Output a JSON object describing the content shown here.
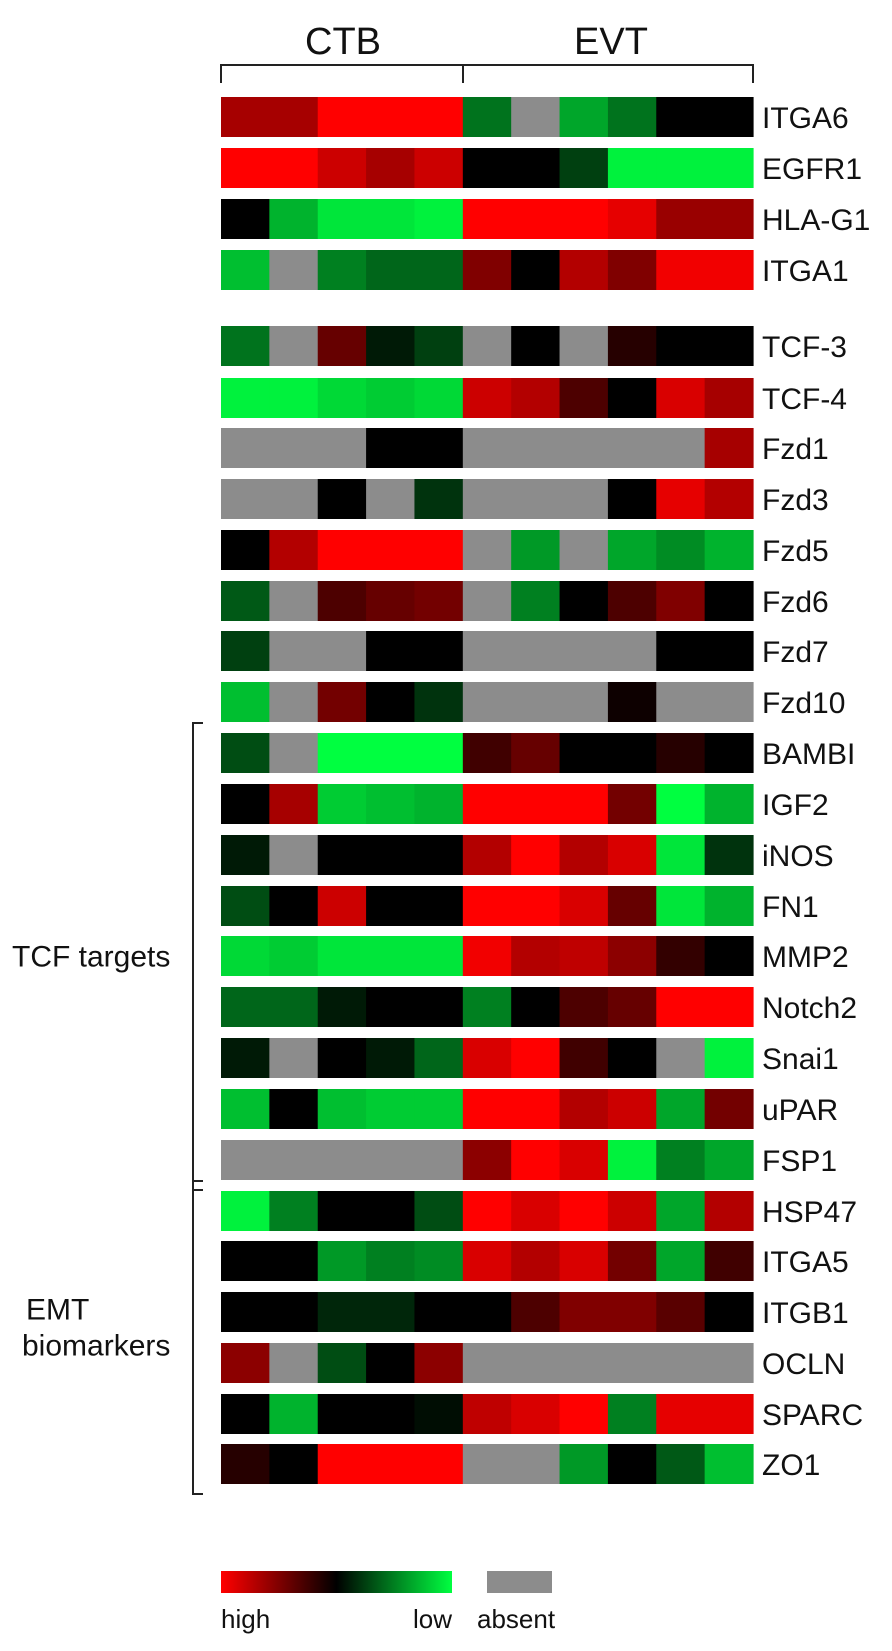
{
  "chart_data": {
    "type": "heatmap",
    "groups": [
      {
        "label": "CTB",
        "columns": 5
      },
      {
        "label": "EVT",
        "columns": 6
      }
    ],
    "color_scale": {
      "high_label": "high",
      "low_label": "low",
      "absent_label": "absent",
      "high_color": "#ff0000",
      "mid_color": "#000000",
      "low_color": "#00ff40",
      "absent_color": "#8c8c8c"
    },
    "row_groups": [
      {
        "label_lines": [
          "TCF targets"
        ],
        "from": "BAMBI",
        "to": "FSP1"
      },
      {
        "label_lines": [
          "EMT",
          "biomarkers"
        ],
        "from": "HSP47",
        "to": "ZO1"
      }
    ],
    "rows": [
      {
        "gene": "ITGA6",
        "values": [
          0.65,
          0.65,
          1,
          1,
          1,
          -0.45,
          null,
          -0.65,
          -0.45,
          0,
          0
        ]
      },
      {
        "gene": "EGFR1",
        "values": [
          1,
          1,
          0.8,
          0.65,
          0.8,
          0,
          0,
          -0.25,
          -0.95,
          -0.95,
          -0.95
        ]
      },
      {
        "gene": "HLA-G1",
        "values": [
          0,
          -0.7,
          -0.9,
          -0.9,
          -0.95,
          1,
          1,
          1,
          0.9,
          0.6,
          0.6
        ]
      },
      {
        "gene": "ITGA1",
        "values": [
          -0.75,
          null,
          -0.5,
          -0.4,
          -0.4,
          0.5,
          0,
          0.7,
          0.5,
          0.95,
          0.95
        ]
      },
      {
        "gene": "TCF-3",
        "values": [
          -0.45,
          null,
          0.4,
          -0.1,
          -0.25,
          null,
          0,
          null,
          0.15,
          0,
          0
        ]
      },
      {
        "gene": "TCF-4",
        "values": [
          -0.95,
          -0.95,
          -0.85,
          -0.8,
          -0.85,
          0.8,
          0.7,
          0.3,
          0,
          0.85,
          0.65
        ]
      },
      {
        "gene": "Fzd1",
        "values": [
          null,
          null,
          null,
          0,
          0,
          null,
          null,
          null,
          null,
          null,
          0.65
        ]
      },
      {
        "gene": "Fzd3",
        "values": [
          null,
          null,
          0,
          null,
          -0.2,
          null,
          null,
          null,
          0,
          0.9,
          0.7
        ]
      },
      {
        "gene": "Fzd5",
        "values": [
          0,
          0.7,
          1,
          1,
          1,
          null,
          -0.6,
          null,
          -0.65,
          -0.55,
          -0.7
        ]
      },
      {
        "gene": "Fzd6",
        "values": [
          -0.35,
          null,
          0.3,
          0.4,
          0.45,
          null,
          -0.5,
          0,
          0.3,
          0.5,
          0
        ]
      },
      {
        "gene": "Fzd7",
        "values": [
          -0.25,
          null,
          null,
          0,
          0,
          null,
          null,
          null,
          null,
          0,
          0
        ]
      },
      {
        "gene": "Fzd10",
        "values": [
          -0.75,
          null,
          0.45,
          0,
          -0.2,
          null,
          null,
          null,
          0.05,
          null,
          null
        ]
      },
      {
        "gene": "BAMBI",
        "values": [
          -0.3,
          null,
          -1,
          -1,
          -1,
          0.25,
          0.4,
          0,
          0,
          0.15,
          0
        ]
      },
      {
        "gene": "IGF2",
        "values": [
          0,
          0.65,
          -0.8,
          -0.75,
          -0.7,
          1,
          1,
          1,
          0.45,
          -1,
          -0.7
        ]
      },
      {
        "gene": "iNOS",
        "values": [
          -0.1,
          null,
          0,
          0,
          0,
          0.7,
          1,
          0.7,
          0.85,
          -0.9,
          -0.2
        ]
      },
      {
        "gene": "FN1",
        "values": [
          -0.3,
          0,
          0.8,
          0,
          0,
          1,
          1,
          0.85,
          0.4,
          -0.9,
          -0.7
        ]
      },
      {
        "gene": "MMP2",
        "values": [
          -0.85,
          -0.8,
          -0.9,
          -0.9,
          -0.9,
          0.95,
          0.7,
          0.75,
          0.55,
          0.2,
          0
        ]
      },
      {
        "gene": "Notch2",
        "values": [
          -0.4,
          -0.4,
          -0.1,
          0,
          0,
          -0.5,
          0,
          0.3,
          0.4,
          1,
          1
        ]
      },
      {
        "gene": "Snai1",
        "values": [
          -0.1,
          null,
          0,
          -0.1,
          -0.4,
          0.85,
          1,
          0.25,
          0,
          null,
          -0.95
        ]
      },
      {
        "gene": "uPAR",
        "values": [
          -0.75,
          0,
          -0.75,
          -0.8,
          -0.8,
          1,
          1,
          0.7,
          0.8,
          -0.65,
          0.45
        ]
      },
      {
        "gene": "FSP1",
        "values": [
          null,
          null,
          null,
          null,
          null,
          0.55,
          1,
          0.85,
          -0.95,
          -0.5,
          -0.65
        ]
      },
      {
        "gene": "HSP47",
        "values": [
          -0.95,
          -0.5,
          0,
          0,
          -0.3,
          1,
          0.85,
          1,
          0.8,
          -0.65,
          0.7
        ]
      },
      {
        "gene": "ITGA5",
        "values": [
          0,
          0,
          -0.6,
          -0.5,
          -0.55,
          0.85,
          0.7,
          0.85,
          0.45,
          -0.65,
          0.25
        ]
      },
      {
        "gene": "ITGB1",
        "values": [
          0,
          0,
          -0.15,
          -0.15,
          0,
          0,
          0.3,
          0.5,
          0.5,
          0.35,
          0
        ]
      },
      {
        "gene": "OCLN",
        "values": [
          0.55,
          null,
          -0.3,
          0,
          0.55,
          null,
          null,
          null,
          null,
          null,
          null
        ]
      },
      {
        "gene": "SPARC",
        "values": [
          0,
          -0.7,
          0,
          0,
          -0.05,
          0.75,
          0.85,
          1,
          -0.5,
          0.9,
          0.9
        ]
      },
      {
        "gene": "ZO1",
        "values": [
          0.15,
          0,
          1,
          1,
          1,
          null,
          null,
          -0.6,
          0,
          -0.35,
          -0.75
        ]
      }
    ]
  }
}
